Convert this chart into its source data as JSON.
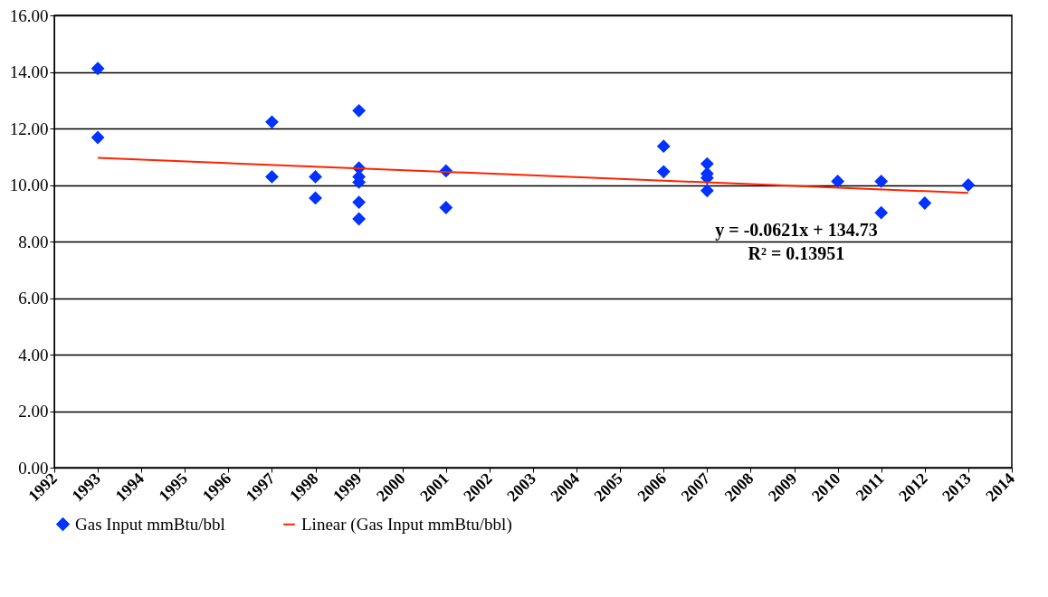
{
  "chart_data": {
    "type": "scatter",
    "series": [
      {
        "name": "Gas Input mmBtu/bbl",
        "color": "#0033ff",
        "marker": "diamond",
        "x": [
          1993,
          1993,
          1997,
          1997,
          1998,
          1998,
          1999,
          1999,
          1999,
          1999,
          1999,
          1999,
          2001,
          2001,
          2006,
          2006,
          2007,
          2007,
          2007,
          2007,
          2010,
          2011,
          2011,
          2012,
          2013
        ],
        "values": [
          14.12,
          11.68,
          12.23,
          10.29,
          10.29,
          9.54,
          12.63,
          10.6,
          10.29,
          10.1,
          9.39,
          8.8,
          10.5,
          9.2,
          11.37,
          10.47,
          10.75,
          10.4,
          10.25,
          9.8,
          10.13,
          10.13,
          9.02,
          9.36,
          10.0
        ]
      },
      {
        "name": "Linear (Gas Input mmBtu/bbl)",
        "type": "line",
        "color": "#ff2200",
        "line_style": "solid",
        "marker": "none",
        "x": [
          1993,
          2013
        ],
        "values": [
          10.96,
          9.72
        ]
      }
    ],
    "xlim": [
      1992,
      2014
    ],
    "xticks": [
      1992,
      1993,
      1994,
      1995,
      1996,
      1997,
      1998,
      1999,
      2000,
      2001,
      2002,
      2003,
      2004,
      2005,
      2006,
      2007,
      2008,
      2009,
      2010,
      2011,
      2012,
      2013,
      2014
    ],
    "ylim": [
      0,
      16
    ],
    "yticks": [
      {
        "value": 0,
        "label": "0.00"
      },
      {
        "value": 2,
        "label": "2.00"
      },
      {
        "value": 4,
        "label": "4.00"
      },
      {
        "value": 6,
        "label": "6.00"
      },
      {
        "value": 8,
        "label": "8.00"
      },
      {
        "value": 10,
        "label": "10.00"
      },
      {
        "value": 12,
        "label": "12.00"
      },
      {
        "value": 14,
        "label": "14.00"
      },
      {
        "value": 16,
        "label": "16.00"
      }
    ],
    "grid": "y",
    "legend": "bottom",
    "annotations": [
      "y = -0.0621x + 134.73",
      "R² = 0.13951"
    ]
  }
}
